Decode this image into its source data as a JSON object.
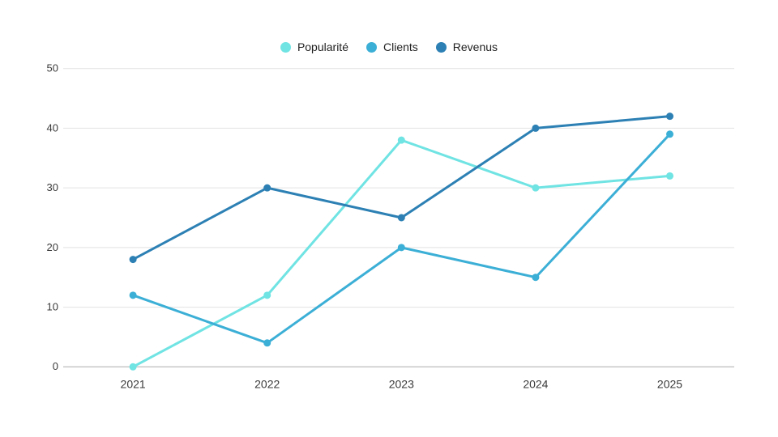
{
  "chart_data": {
    "type": "line",
    "title": "",
    "xlabel": "",
    "ylabel": "",
    "categories": [
      "2021",
      "2022",
      "2023",
      "2024",
      "2025"
    ],
    "series": [
      {
        "name": "Popularité",
        "color": "#70E3E3",
        "values": [
          0,
          12,
          38,
          30,
          32
        ]
      },
      {
        "name": "Clients",
        "color": "#3CAFD6",
        "values": [
          12,
          4,
          20,
          15,
          39
        ]
      },
      {
        "name": "Revenus",
        "color": "#2C80B4",
        "values": [
          18,
          30,
          25,
          40,
          42
        ]
      }
    ],
    "ylim": [
      0,
      50
    ],
    "yticks": [
      0,
      10,
      20,
      30,
      40,
      50
    ],
    "grid": "horizontal-only",
    "legend_position": "top-center",
    "colors": {
      "gridline": "#E2E2E2",
      "axis_line": "#ACACAC",
      "tick_label": "#3A3A3A",
      "background": "#FFFFFF"
    }
  }
}
